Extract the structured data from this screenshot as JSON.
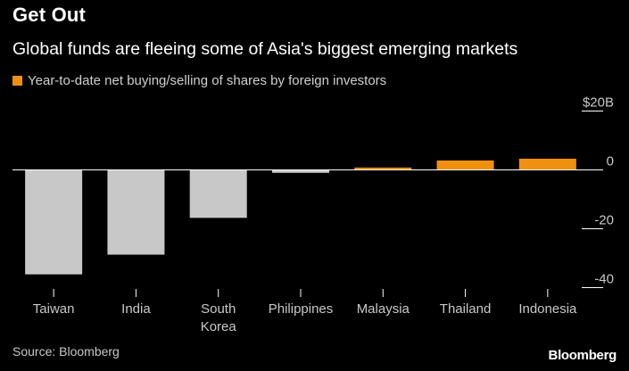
{
  "header": {
    "title": "Get Out",
    "subtitle": "Global funds are fleeing some of Asia's biggest emerging markets",
    "legend_label": "Year-to-date net buying/selling of shares by foreign investors"
  },
  "footer": {
    "source": "Source: Bloomberg",
    "brand": "Bloomberg"
  },
  "colors": {
    "positive": "#f0900f",
    "negative": "#c8c8c8",
    "axis": "#ffffff",
    "text": "#c8c8c8"
  },
  "chart_data": {
    "type": "bar",
    "title": "Get Out",
    "subtitle": "Global funds are fleeing some of Asia's biggest emerging markets",
    "xlabel": "",
    "ylabel": "",
    "ylim": [
      -40,
      20
    ],
    "y_ticks": [
      {
        "value": 20,
        "label": "$20B"
      },
      {
        "value": 0,
        "label": "0"
      },
      {
        "value": -20,
        "label": "-20"
      },
      {
        "value": -40,
        "label": "-40"
      }
    ],
    "categories": [
      [
        "Taiwan"
      ],
      [
        "India"
      ],
      [
        "South",
        "Korea"
      ],
      [
        "Philippines"
      ],
      [
        "Malaysia"
      ],
      [
        "Thailand"
      ],
      [
        "Indonesia"
      ]
    ],
    "values": [
      -35.5,
      -28.8,
      -16.3,
      -1.0,
      0.8,
      3.2,
      3.8
    ],
    "legend": [
      "Year-to-date net buying/selling of shares by foreign investors"
    ],
    "grid": false
  }
}
